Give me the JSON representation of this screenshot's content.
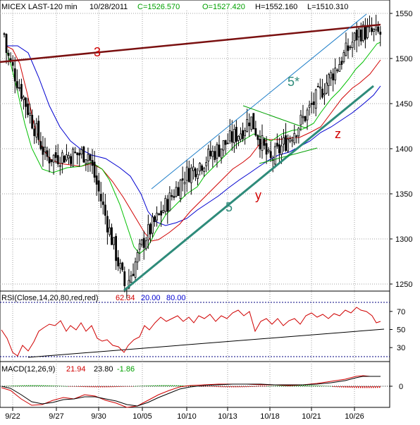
{
  "header": {
    "symbol": "MICEX LAST-120 min",
    "date": "10/28/2011",
    "close": "C=1526.570",
    "open": "O=1527.420",
    "high": "H=1552.160",
    "low": "L=1510.310"
  },
  "chart_data": [
    {
      "type": "candlestick",
      "title": "MICEX LAST-120 min",
      "y_ticks": [
        "1550",
        "1500",
        "1450",
        "1400",
        "1350",
        "1300",
        "1250"
      ],
      "ylim": [
        1240,
        1560
      ],
      "x_ticks": [
        "9/22",
        "9/27",
        "9/30",
        "10/05",
        "10/10",
        "10/13",
        "10/18",
        "10/21",
        "10/26"
      ],
      "grid": true,
      "colors": {
        "up": "#000000",
        "down": "#000000",
        "ma_short": "#00c000",
        "ma_mid": "#d00000",
        "ma_long": "#0000d0",
        "trendline": "#2e8b7a",
        "resistance": "#7a1010",
        "wave_label": "#2e8b7a",
        "wave_label_red": "#d00000"
      },
      "annotations": [
        "3",
        "5*",
        "5",
        "y",
        "z"
      ],
      "key_points": [
        {
          "x": "9/22",
          "close": 1510
        },
        {
          "x": "9/27",
          "close": 1390
        },
        {
          "x": "9/30",
          "close": 1395
        },
        {
          "x": "10/04",
          "close": 1245
        },
        {
          "x": "10/05",
          "close": 1300
        },
        {
          "x": "10/10",
          "close": 1370
        },
        {
          "x": "10/13",
          "close": 1420
        },
        {
          "x": "10/14",
          "close": 1435
        },
        {
          "x": "10/18",
          "close": 1385
        },
        {
          "x": "10/21",
          "close": 1435
        },
        {
          "x": "10/26",
          "close": 1530
        },
        {
          "x": "10/28",
          "close": 1527
        }
      ]
    },
    {
      "type": "line",
      "title": "RSI(Close,14,20,80,red,red)",
      "legend": [
        "62.34",
        "20.00",
        "80.00"
      ],
      "y_ticks": [
        "70",
        "50",
        "30"
      ],
      "ylim": [
        10,
        90
      ],
      "last_value": 62.34
    },
    {
      "type": "bar",
      "title": "MACD(12,26,9)",
      "legend": [
        "21.94",
        "23.80",
        "-1.86"
      ],
      "y_ticks": [
        "0"
      ],
      "values": {
        "macd": 21.94,
        "signal": 23.8,
        "histogram": -1.86
      }
    }
  ]
}
